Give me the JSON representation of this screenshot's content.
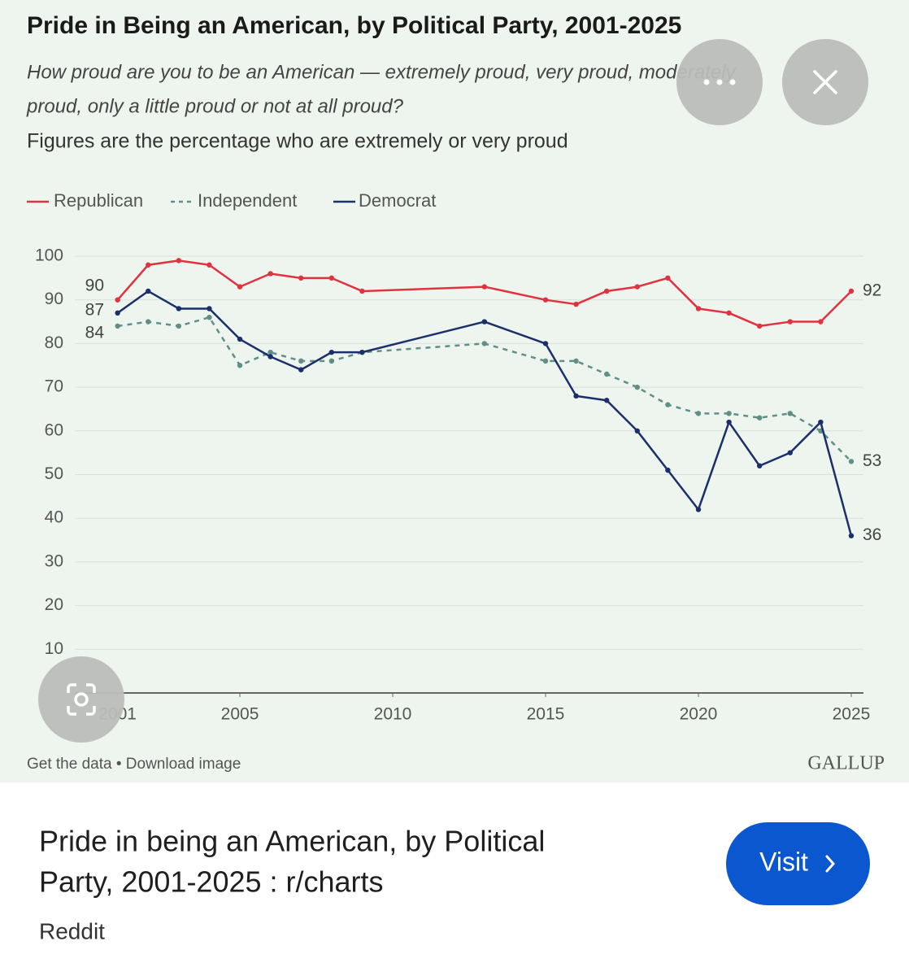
{
  "chart_data": {
    "type": "line",
    "title": "Pride in Being an American, by Political Party, 2001-2025",
    "subtitle": [
      "How proud are you to be an American — extremely proud, very proud, moderately",
      "proud, only a little proud or not at all proud?"
    ],
    "note": "Figures are the percentage who are extremely or very proud",
    "x": [
      2001,
      2002,
      2003,
      2004,
      2005,
      2006,
      2007,
      2008,
      2009,
      2013,
      2015,
      2016,
      2017,
      2018,
      2019,
      2020,
      2021,
      2022,
      2023,
      2024,
      2025
    ],
    "series": [
      {
        "name": "Republican",
        "color": "#e0323f",
        "dashed": false,
        "values": [
          90,
          98,
          99,
          98,
          93,
          96,
          95,
          95,
          92,
          93,
          90,
          89,
          92,
          93,
          95,
          88,
          87,
          84,
          85,
          85,
          92
        ]
      },
      {
        "name": "Independent",
        "color": "#5f8f86",
        "dashed": true,
        "values": [
          84,
          85,
          84,
          86,
          75,
          78,
          76,
          76,
          78,
          80,
          76,
          76,
          73,
          70,
          66,
          64,
          64,
          63,
          64,
          60,
          53
        ]
      },
      {
        "name": "Democrat",
        "color": "#1b2f6b",
        "dashed": false,
        "values": [
          87,
          92,
          88,
          88,
          81,
          77,
          74,
          78,
          78,
          85,
          80,
          68,
          67,
          60,
          51,
          42,
          62,
          52,
          55,
          62,
          36
        ]
      }
    ],
    "xlim": [
      1999.6,
      2025.4
    ],
    "xticks": [
      2001,
      2005,
      2010,
      2015,
      2020,
      2025
    ],
    "ylim": [
      0,
      100
    ],
    "yticks": [
      10,
      20,
      30,
      40,
      50,
      60,
      70,
      80,
      90,
      100
    ],
    "grid": true,
    "footer": "Get the data • Download image",
    "source": "GALLUP"
  },
  "result": {
    "title": [
      "Pride in being an American, by Political",
      "Party, 2001-2025 : r/charts"
    ],
    "site": "Reddit",
    "button": "Visit"
  }
}
